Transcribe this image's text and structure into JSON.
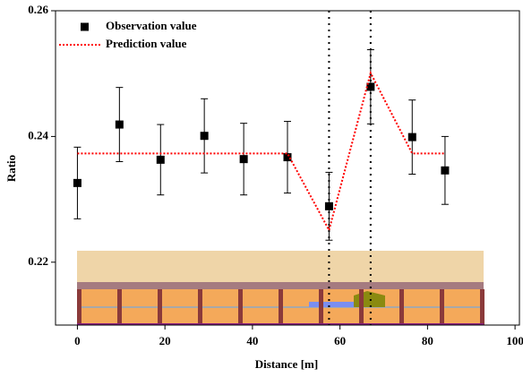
{
  "chart_data": {
    "type": "errorbar",
    "xlabel": "Distance [m]",
    "ylabel": "Ratio",
    "xlim": [
      -5,
      101
    ],
    "ylim": [
      0.21,
      0.26
    ],
    "xticks": [
      0,
      20,
      40,
      60,
      80,
      100
    ],
    "yticks": [
      0.22,
      0.24,
      0.26
    ],
    "vlines": [
      57.5,
      67
    ],
    "legend": "upper left",
    "series": [
      {
        "name": "Observation value",
        "color": "#000000",
        "x": [
          0,
          9.6,
          19,
          29,
          38,
          48,
          57.5,
          67,
          76.5,
          84
        ],
        "values": [
          0.2326,
          0.2419,
          0.2363,
          0.2401,
          0.2364,
          0.2367,
          0.2289,
          0.2479,
          0.2399,
          0.2346
        ],
        "errors": [
          0.0057,
          0.0059,
          0.0056,
          0.0059,
          0.0057,
          0.0057,
          0.0054,
          0.0059,
          0.0059,
          0.0054
        ]
      },
      {
        "name": "Prediction value",
        "color": "#ff0000",
        "x": [
          0,
          48,
          57.5,
          67,
          76.5,
          84
        ],
        "values": [
          0.2373,
          0.2373,
          0.2251,
          0.2501,
          0.2373,
          0.2373
        ]
      }
    ]
  }
}
